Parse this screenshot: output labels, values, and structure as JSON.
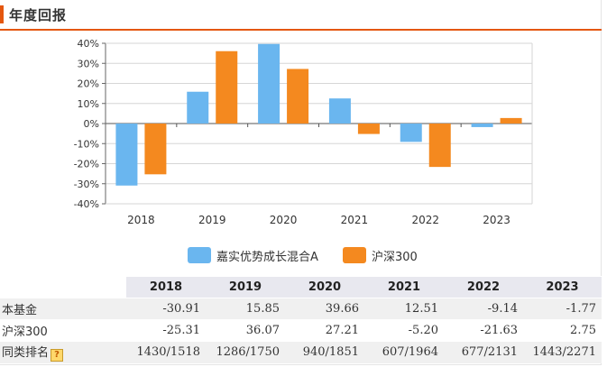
{
  "header": {
    "title": "年度回报"
  },
  "colors": {
    "accent": "#e4570f",
    "fund": "#6ab6ef",
    "index": "#f4891f"
  },
  "chart_data": {
    "type": "bar",
    "categories": [
      "2018",
      "2019",
      "2020",
      "2021",
      "2022",
      "2023"
    ],
    "series": [
      {
        "name": "嘉实优势成长混合A",
        "color": "#6ab6ef",
        "values": [
          -30.91,
          15.85,
          39.66,
          12.51,
          -9.14,
          -1.77
        ]
      },
      {
        "name": "沪深300",
        "color": "#f4891f",
        "values": [
          -25.31,
          36.07,
          27.21,
          -5.2,
          -21.63,
          2.75
        ]
      }
    ],
    "ylim": [
      -40,
      40
    ],
    "yticks": [
      "40%",
      "30%",
      "20%",
      "10%",
      "0%",
      "-10%",
      "-20%",
      "-30%",
      "-40%"
    ],
    "ytick_values": [
      40,
      30,
      20,
      10,
      0,
      -10,
      -20,
      -30,
      -40
    ],
    "grid": true,
    "legend_position": "bottom"
  },
  "table": {
    "columns": [
      "2018",
      "2019",
      "2020",
      "2021",
      "2022",
      "2023"
    ],
    "rows": [
      {
        "label": "本基金",
        "values": [
          "-30.91",
          "15.85",
          "39.66",
          "12.51",
          "-9.14",
          "-1.77"
        ]
      },
      {
        "label": "沪深300",
        "values": [
          "-25.31",
          "36.07",
          "27.21",
          "-5.20",
          "-21.63",
          "2.75"
        ]
      },
      {
        "label": "同类排名",
        "help_icon": "question-icon",
        "help_glyph": "?",
        "values": [
          "1430/1518",
          "1286/1750",
          "940/1851",
          "607/1964",
          "677/2131",
          "1443/2271"
        ]
      }
    ]
  }
}
